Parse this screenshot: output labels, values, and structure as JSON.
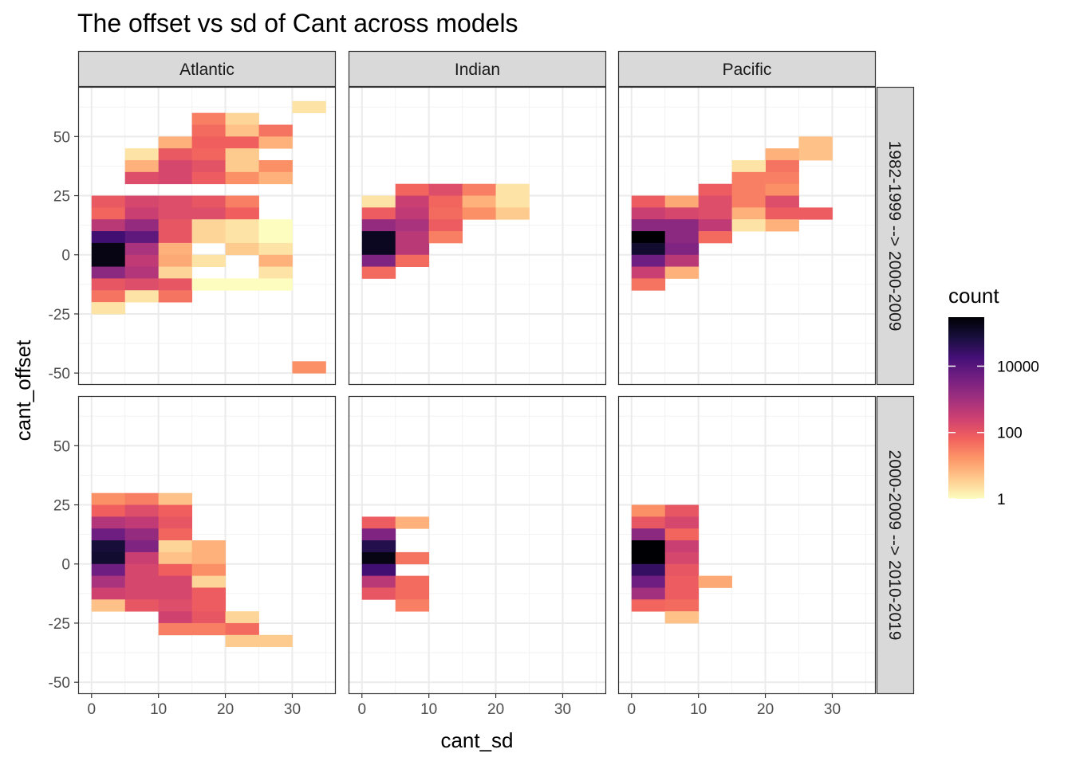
{
  "chart_data": {
    "type": "heatmap",
    "title": "The offset vs sd of Cant across models",
    "xlabel": "cant_sd",
    "ylabel": "cant_offset",
    "xlim": [
      -2,
      36.5
    ],
    "ylim": [
      -55,
      71
    ],
    "xticks": [
      0,
      10,
      20,
      30
    ],
    "yticks": [
      -50,
      -25,
      0,
      25,
      50
    ],
    "bin_width_x": 5,
    "bin_width_y": 5,
    "columns": [
      "Atlantic",
      "Indian",
      "Pacific"
    ],
    "rows": [
      "1982-1999 --> 2000-2009",
      "2000-2009 --> 2010-2019"
    ],
    "color_scale": {
      "name": "count",
      "transform": "log10",
      "range": [
        1,
        300000
      ],
      "breaks": [
        1,
        100,
        10000
      ],
      "break_labels": [
        "1",
        "100",
        "10000"
      ],
      "palette": [
        "#fcfdbf",
        "#feca8d",
        "#fd9668",
        "#f1605d",
        "#cd4071",
        "#9e2f7f",
        "#721f81",
        "#440f76",
        "#180f3d",
        "#000004"
      ]
    },
    "panels": [
      {
        "column": "Atlantic",
        "row": "1982-1999 --> 2000-2009",
        "cells": [
          [
            30,
            60,
            2
          ],
          [
            30,
            -50,
            20
          ],
          [
            15,
            55,
            30
          ],
          [
            20,
            55,
            3
          ],
          [
            15,
            50,
            50
          ],
          [
            20,
            50,
            5
          ],
          [
            25,
            50,
            40
          ],
          [
            10,
            45,
            8
          ],
          [
            15,
            45,
            70
          ],
          [
            20,
            45,
            70
          ],
          [
            25,
            45,
            8
          ],
          [
            5,
            40,
            2
          ],
          [
            10,
            40,
            90
          ],
          [
            15,
            40,
            60
          ],
          [
            20,
            40,
            4
          ],
          [
            5,
            35,
            8
          ],
          [
            10,
            35,
            200
          ],
          [
            15,
            35,
            120
          ],
          [
            20,
            35,
            4
          ],
          [
            25,
            35,
            20
          ],
          [
            5,
            30,
            150
          ],
          [
            10,
            30,
            200
          ],
          [
            15,
            30,
            80
          ],
          [
            20,
            30,
            20
          ],
          [
            25,
            30,
            8
          ],
          [
            0,
            20,
            90
          ],
          [
            5,
            20,
            200
          ],
          [
            10,
            20,
            150
          ],
          [
            15,
            20,
            100
          ],
          [
            20,
            20,
            30
          ],
          [
            0,
            15,
            60
          ],
          [
            5,
            15,
            300
          ],
          [
            10,
            15,
            150
          ],
          [
            15,
            15,
            150
          ],
          [
            20,
            15,
            70
          ],
          [
            0,
            10,
            500
          ],
          [
            5,
            10,
            1500
          ],
          [
            10,
            10,
            100
          ],
          [
            15,
            10,
            3
          ],
          [
            20,
            10,
            2
          ],
          [
            25,
            10,
            1
          ],
          [
            0,
            5,
            20000
          ],
          [
            5,
            5,
            8000
          ],
          [
            10,
            5,
            100
          ],
          [
            15,
            5,
            3
          ],
          [
            20,
            5,
            2
          ],
          [
            25,
            5,
            1
          ],
          [
            0,
            0,
            200000
          ],
          [
            5,
            0,
            800
          ],
          [
            10,
            0,
            8
          ],
          [
            20,
            0,
            4
          ],
          [
            25,
            0,
            2
          ],
          [
            0,
            -5,
            200000
          ],
          [
            5,
            -5,
            400
          ],
          [
            10,
            -5,
            10
          ],
          [
            15,
            -5,
            2
          ],
          [
            25,
            -5,
            8
          ],
          [
            0,
            -10,
            2000
          ],
          [
            5,
            -10,
            600
          ],
          [
            10,
            -10,
            3
          ],
          [
            25,
            -10,
            2
          ],
          [
            0,
            -15,
            100
          ],
          [
            5,
            -15,
            150
          ],
          [
            10,
            -15,
            100
          ],
          [
            15,
            -15,
            1
          ],
          [
            20,
            -15,
            1
          ],
          [
            25,
            -15,
            1
          ],
          [
            0,
            -20,
            40
          ],
          [
            5,
            -20,
            2
          ],
          [
            10,
            -20,
            40
          ],
          [
            0,
            -25,
            2
          ]
        ]
      },
      {
        "column": "Indian",
        "row": "1982-1999 --> 2000-2009",
        "cells": [
          [
            5,
            25,
            60
          ],
          [
            10,
            25,
            150
          ],
          [
            15,
            25,
            30
          ],
          [
            20,
            25,
            2
          ],
          [
            0,
            20,
            2
          ],
          [
            5,
            20,
            300
          ],
          [
            10,
            20,
            60
          ],
          [
            15,
            20,
            8
          ],
          [
            20,
            20,
            2
          ],
          [
            0,
            15,
            80
          ],
          [
            5,
            15,
            400
          ],
          [
            10,
            15,
            50
          ],
          [
            15,
            15,
            20
          ],
          [
            20,
            15,
            4
          ],
          [
            0,
            10,
            1500
          ],
          [
            5,
            10,
            800
          ],
          [
            10,
            10,
            80
          ],
          [
            0,
            5,
            150000
          ],
          [
            5,
            5,
            500
          ],
          [
            10,
            5,
            30
          ],
          [
            0,
            0,
            150000
          ],
          [
            5,
            0,
            500
          ],
          [
            0,
            -5,
            3000
          ],
          [
            5,
            -5,
            50
          ],
          [
            0,
            -10,
            50
          ]
        ]
      },
      {
        "column": "Pacific",
        "row": "1982-1999 --> 2000-2009",
        "cells": [
          [
            25,
            45,
            5
          ],
          [
            25,
            40,
            5
          ],
          [
            20,
            40,
            8
          ],
          [
            20,
            35,
            40
          ],
          [
            15,
            35,
            2
          ],
          [
            15,
            30,
            30
          ],
          [
            20,
            30,
            30
          ],
          [
            10,
            25,
            80
          ],
          [
            15,
            25,
            30
          ],
          [
            20,
            25,
            20
          ],
          [
            0,
            20,
            80
          ],
          [
            5,
            20,
            10
          ],
          [
            10,
            20,
            150
          ],
          [
            15,
            20,
            30
          ],
          [
            20,
            20,
            150
          ],
          [
            0,
            15,
            300
          ],
          [
            5,
            15,
            200
          ],
          [
            10,
            15,
            150
          ],
          [
            15,
            15,
            8
          ],
          [
            20,
            15,
            80
          ],
          [
            25,
            15,
            80
          ],
          [
            0,
            10,
            2000
          ],
          [
            5,
            10,
            2000
          ],
          [
            10,
            10,
            400
          ],
          [
            15,
            10,
            2
          ],
          [
            20,
            10,
            8
          ],
          [
            0,
            5,
            300000
          ],
          [
            5,
            5,
            2000
          ],
          [
            10,
            5,
            50
          ],
          [
            0,
            0,
            100000
          ],
          [
            5,
            0,
            3000
          ],
          [
            0,
            -5,
            5000
          ],
          [
            5,
            -5,
            500
          ],
          [
            0,
            -10,
            300
          ],
          [
            5,
            -10,
            8
          ],
          [
            0,
            -15,
            40
          ]
        ]
      },
      {
        "column": "Atlantic",
        "row": "2000-2009 --> 2010-2019",
        "cells": [
          [
            0,
            25,
            20
          ],
          [
            5,
            25,
            30
          ],
          [
            10,
            25,
            5
          ],
          [
            0,
            20,
            70
          ],
          [
            5,
            20,
            150
          ],
          [
            10,
            20,
            70
          ],
          [
            0,
            15,
            600
          ],
          [
            5,
            15,
            400
          ],
          [
            10,
            15,
            100
          ],
          [
            0,
            10,
            5000
          ],
          [
            5,
            10,
            1500
          ],
          [
            10,
            10,
            60
          ],
          [
            0,
            5,
            80000
          ],
          [
            5,
            5,
            3000
          ],
          [
            10,
            5,
            3
          ],
          [
            15,
            5,
            8
          ],
          [
            0,
            0,
            100000
          ],
          [
            5,
            0,
            300
          ],
          [
            10,
            0,
            5
          ],
          [
            15,
            0,
            8
          ],
          [
            0,
            -5,
            5000
          ],
          [
            5,
            -5,
            200
          ],
          [
            10,
            -5,
            70
          ],
          [
            15,
            -5,
            20
          ],
          [
            0,
            -10,
            800
          ],
          [
            5,
            -10,
            200
          ],
          [
            10,
            -10,
            200
          ],
          [
            15,
            -10,
            3
          ],
          [
            0,
            -15,
            250
          ],
          [
            5,
            -15,
            200
          ],
          [
            10,
            -15,
            200
          ],
          [
            15,
            -15,
            80
          ],
          [
            0,
            -20,
            5
          ],
          [
            5,
            -20,
            100
          ],
          [
            10,
            -20,
            150
          ],
          [
            15,
            -20,
            80
          ],
          [
            10,
            -25,
            250
          ],
          [
            15,
            -25,
            100
          ],
          [
            20,
            -25,
            3
          ],
          [
            10,
            -30,
            30
          ],
          [
            15,
            -30,
            30
          ],
          [
            20,
            -30,
            50
          ],
          [
            20,
            -35,
            4
          ],
          [
            25,
            -35,
            4
          ]
        ]
      },
      {
        "column": "Indian",
        "row": "2000-2009 --> 2010-2019",
        "cells": [
          [
            0,
            15,
            80
          ],
          [
            5,
            15,
            8
          ],
          [
            0,
            10,
            3000
          ],
          [
            0,
            5,
            50000
          ],
          [
            0,
            0,
            200000
          ],
          [
            5,
            0,
            40
          ],
          [
            0,
            -5,
            20000
          ],
          [
            0,
            -10,
            500
          ],
          [
            5,
            -10,
            50
          ],
          [
            0,
            -15,
            100
          ],
          [
            5,
            -15,
            50
          ],
          [
            5,
            -20,
            30
          ]
        ]
      },
      {
        "column": "Pacific",
        "row": "2000-2009 --> 2010-2019",
        "cells": [
          [
            0,
            20,
            20
          ],
          [
            5,
            20,
            100
          ],
          [
            0,
            15,
            100
          ],
          [
            5,
            15,
            200
          ],
          [
            0,
            10,
            2000
          ],
          [
            5,
            10,
            60
          ],
          [
            0,
            5,
            300000
          ],
          [
            5,
            5,
            300
          ],
          [
            0,
            0,
            300000
          ],
          [
            5,
            0,
            200
          ],
          [
            0,
            -5,
            30000
          ],
          [
            5,
            -5,
            100
          ],
          [
            0,
            -10,
            5000
          ],
          [
            5,
            -10,
            80
          ],
          [
            10,
            -10,
            10
          ],
          [
            0,
            -15,
            1000
          ],
          [
            5,
            -15,
            80
          ],
          [
            0,
            -20,
            60
          ],
          [
            5,
            -20,
            50
          ],
          [
            5,
            -25,
            5
          ]
        ]
      }
    ],
    "grid": true,
    "legend_placement": "right"
  }
}
